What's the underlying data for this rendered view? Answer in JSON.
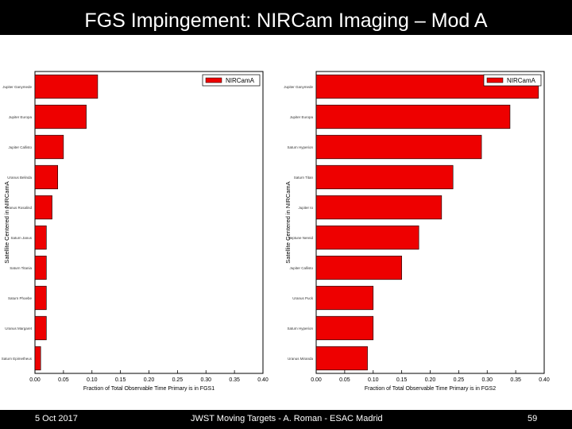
{
  "slide": {
    "title": "FGS Impingement: NIRCam Imaging – Mod A",
    "footer_date": "5 Oct 2017",
    "footer_center": "JWST Moving Targets - A. Roman - ESAC Madrid",
    "page_number": "59"
  },
  "chart_data": [
    {
      "type": "bar",
      "orientation": "horizontal",
      "categories": [
        "Saturn Epimetheus",
        "Uranus Margaret",
        "Saturn Phoebe",
        "Saturn Titania",
        "Saturn Janus",
        "Uranus Rosalind",
        "Uranus Belinda",
        "Jupiter Callisto",
        "Jupiter Europa",
        "Jupiter Ganymede"
      ],
      "series": [
        {
          "name": "NIRCamA",
          "values": [
            0.01,
            0.02,
            0.02,
            0.02,
            0.02,
            0.03,
            0.04,
            0.05,
            0.09,
            0.11
          ]
        }
      ],
      "xlabel": "Fraction of Total Observable Time Primary is in FGS1",
      "ylabel": "Satellite Centered in NIRCamA",
      "xlim": [
        0.0,
        0.4
      ],
      "xticks": [
        "0.00",
        "0.05",
        "0.10",
        "0.15",
        "0.20",
        "0.25",
        "0.30",
        "0.35",
        "0.40"
      ],
      "legend": "top-right",
      "grid": false,
      "bar_color": "#ee0000"
    },
    {
      "type": "bar",
      "orientation": "horizontal",
      "categories": [
        "Uranus Miranda",
        "Saturn Hyperion",
        "Uranus Puck",
        "Jupiter Callisto",
        "Neptune Nereid",
        "Jupiter Io",
        "Saturn Titan",
        "Saturn Hyperion",
        "Jupiter Europa",
        "Jupiter Ganymede"
      ],
      "series": [
        {
          "name": "NIRCamA",
          "values": [
            0.09,
            0.1,
            0.1,
            0.15,
            0.18,
            0.22,
            0.24,
            0.29,
            0.34,
            0.39
          ]
        }
      ],
      "xlabel": "Fraction of Total Observable Time Primary is in FGS2",
      "ylabel": "Satellite Centered in NIRCamA",
      "xlim": [
        0.0,
        0.4
      ],
      "xticks": [
        "0.00",
        "0.05",
        "0.10",
        "0.15",
        "0.20",
        "0.25",
        "0.30",
        "0.35",
        "0.40"
      ],
      "legend": "top-right",
      "grid": false,
      "bar_color": "#ee0000"
    }
  ]
}
